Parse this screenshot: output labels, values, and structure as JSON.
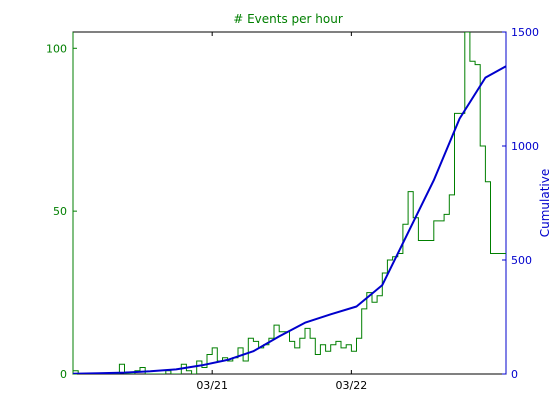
{
  "chart_data": {
    "type": "line",
    "title": "# Events per hour",
    "title_color": "#007f00",
    "xlabel": "",
    "ylabel_left": "",
    "ylabel_right": "Cumulative",
    "xlim": [
      0,
      84
    ],
    "ylim_left": [
      0,
      105
    ],
    "ylim_right": [
      0,
      1500
    ],
    "x_ticks": [
      {
        "label": "03/21",
        "x": 27
      },
      {
        "label": "03/22",
        "x": 54
      }
    ],
    "y_ticks_left": [
      0,
      50,
      100
    ],
    "y_ticks_right": [
      0,
      500,
      1000,
      1500
    ],
    "grid": false,
    "legend": "none",
    "series": [
      {
        "color": "#007f00",
        "axis": "left",
        "style": "step",
        "x": [
          0,
          1,
          2,
          3,
          4,
          5,
          6,
          7,
          8,
          9,
          10,
          11,
          12,
          13,
          14,
          15,
          16,
          17,
          18,
          19,
          20,
          21,
          22,
          23,
          24,
          25,
          26,
          27,
          28,
          29,
          30,
          31,
          32,
          33,
          34,
          35,
          36,
          37,
          38,
          39,
          40,
          41,
          42,
          43,
          44,
          45,
          46,
          47,
          48,
          49,
          50,
          51,
          52,
          53,
          54,
          55,
          56,
          57,
          58,
          59,
          60,
          61,
          62,
          63,
          64,
          65,
          66,
          67,
          68,
          69,
          70,
          71,
          72,
          73,
          74,
          75,
          76,
          77,
          78,
          79,
          80,
          81,
          82,
          83
        ],
        "values": [
          1,
          0,
          0,
          0,
          0,
          0,
          0,
          0,
          0,
          3,
          0,
          0,
          1,
          2,
          0,
          0,
          0,
          0,
          1,
          0,
          0,
          3,
          1,
          0,
          4,
          2,
          6,
          8,
          4,
          5,
          4,
          5,
          8,
          4,
          11,
          10,
          8,
          9,
          11,
          15,
          13,
          13,
          10,
          8,
          11,
          14,
          11,
          6,
          9,
          7,
          9,
          10,
          8,
          9,
          7,
          11,
          20,
          25,
          22,
          24,
          31,
          35,
          36,
          37,
          46,
          56,
          48,
          41,
          41,
          41,
          47,
          47,
          49,
          55,
          80,
          80,
          105,
          96,
          95,
          70,
          59,
          37,
          37,
          37
        ]
      },
      {
        "color": "#0000cc",
        "axis": "right",
        "style": "line",
        "x": [
          0,
          5,
          10,
          15,
          20,
          25,
          30,
          35,
          40,
          45,
          50,
          55,
          60,
          65,
          70,
          75,
          80,
          84
        ],
        "values": [
          1,
          3,
          6,
          12,
          20,
          38,
          62,
          100,
          165,
          225,
          262,
          296,
          390,
          620,
          850,
          1120,
          1300,
          1350
        ]
      }
    ]
  }
}
